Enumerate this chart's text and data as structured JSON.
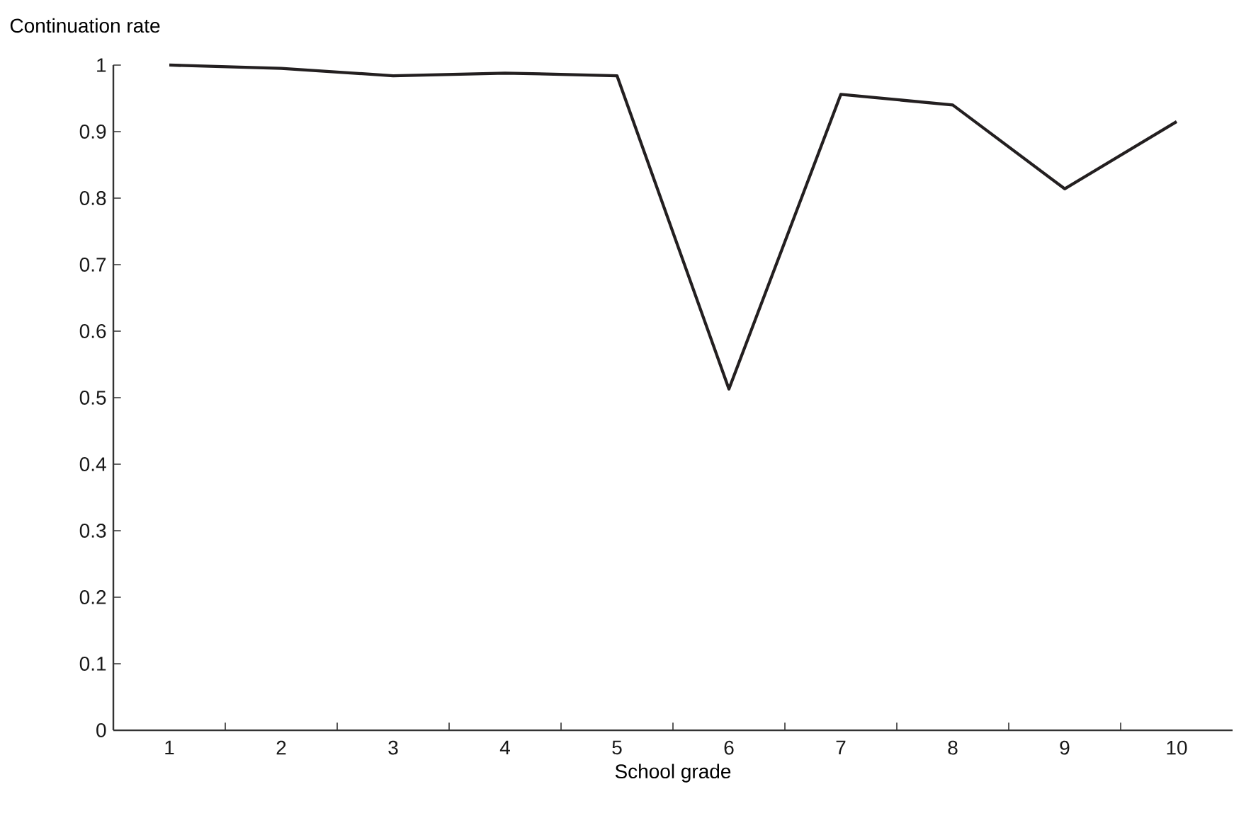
{
  "chart_data": {
    "type": "line",
    "ylabel": "Continuation rate",
    "xlabel": "School grade",
    "categories": [
      "1",
      "2",
      "3",
      "4",
      "5",
      "6",
      "7",
      "8",
      "9",
      "10"
    ],
    "series": [
      {
        "color": "#231f20",
        "values": [
          1.0,
          0.995,
          0.984,
          0.988,
          0.984,
          0.513,
          0.956,
          0.94,
          0.814,
          0.915
        ]
      }
    ],
    "ylim": [
      0,
      1
    ],
    "yticks": [
      0,
      0.1,
      0.2,
      0.3,
      0.4,
      0.5,
      0.6,
      0.7,
      0.8,
      0.9,
      1
    ],
    "marker": "none",
    "line_style": "solid"
  }
}
